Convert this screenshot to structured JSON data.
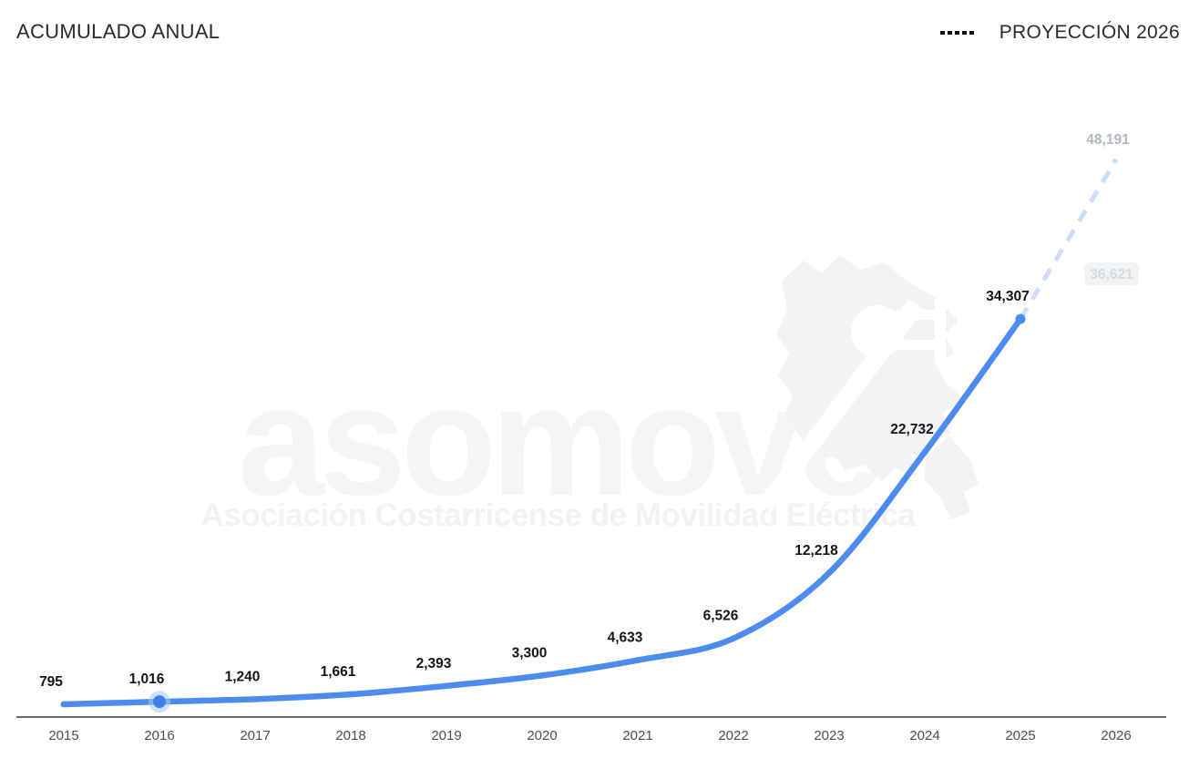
{
  "header": {
    "title": "ACUMULADO ANUAL"
  },
  "legend": {
    "items": [
      {
        "label": "PROYECCIÓN 2026",
        "style": "dashed",
        "color": "#111111"
      }
    ]
  },
  "watermark": {
    "wordmark": "asomove",
    "subtitle": "Asociación Costarricense de Movilidad Eléctrica"
  },
  "colors": {
    "line_blue": "#4c8bf0",
    "projection_blue": "#cbddf8",
    "marker_halo": "#a9c8f5",
    "data_label": "#131619",
    "projection_label": "#b2b9c1",
    "faded_label_text": "#d6dadd",
    "faded_label_bg": "#f2f3f4",
    "axis_line": "#33383e",
    "tick_label": "#4a5056",
    "watermark_gray": "#f3f4f6"
  },
  "chart_data": {
    "type": "line",
    "title": "ACUMULADO ANUAL",
    "categories": [
      "2015",
      "2016",
      "2017",
      "2018",
      "2019",
      "2020",
      "2021",
      "2022",
      "2023",
      "2024",
      "2025",
      "2026"
    ],
    "series": [
      {
        "name": "Acumulado anual",
        "style": "solid",
        "categories": [
          "2015",
          "2016",
          "2017",
          "2018",
          "2019",
          "2020",
          "2021",
          "2022",
          "2023",
          "2024",
          "2025"
        ],
        "values": [
          795,
          1016,
          1240,
          1661,
          2393,
          3300,
          4633,
          6526,
          12218,
          22732,
          34307
        ],
        "labels": [
          "795",
          "1,016",
          "1,240",
          "1,661",
          "2,393",
          "3,300",
          "4,633",
          "6,526",
          "12,218",
          "22,732",
          "34,307"
        ]
      },
      {
        "name": "Proyección 2026",
        "style": "dashed",
        "categories": [
          "2025",
          "2026"
        ],
        "values": [
          34307,
          48191
        ],
        "labels": [
          "",
          "48,191"
        ]
      }
    ],
    "secondary_projection_label": {
      "value": 36621,
      "label": "36,621"
    },
    "highlighted_point": {
      "category": "2016",
      "value": 1016
    },
    "ylim": [
      0,
      50000
    ],
    "grid": false,
    "legend_position": "top-right"
  }
}
